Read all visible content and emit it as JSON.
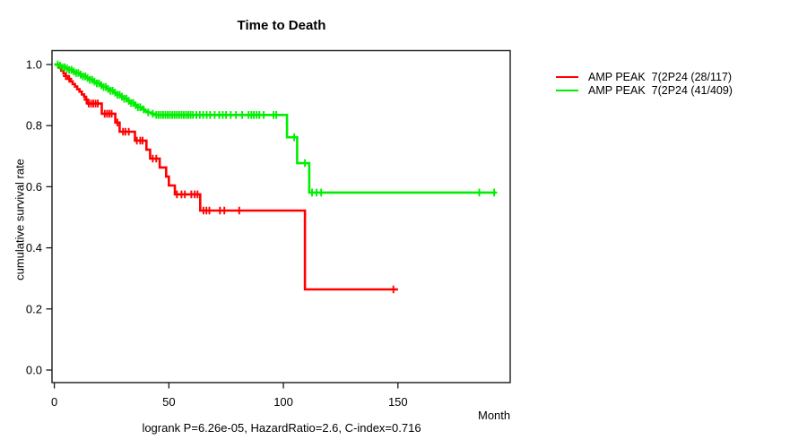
{
  "title": "Time to Death",
  "axes": {
    "ylabel": "cumulative survival rate",
    "xlabel": "Month",
    "xtick_labels": [
      "0",
      "50",
      "100",
      "150"
    ],
    "ytick_labels": [
      "0.0",
      "0.2",
      "0.4",
      "0.6",
      "0.8",
      "1.0"
    ]
  },
  "footnote": "logrank P=6.26e-05, HazardRatio=2.6, C-index=0.716",
  "legend": {
    "items": [
      {
        "label": "AMP PEAK  7(2P24 (28/117)",
        "color": "#ff0000"
      },
      {
        "label": "AMP PEAK  7(2P24 (41/409)",
        "color": "#00ee00"
      }
    ]
  },
  "chart_data": {
    "type": "line",
    "subtype": "kaplan-meier-step",
    "title": "Time to Death",
    "xlabel": "Month",
    "ylabel": "cumulative survival rate",
    "xlim": [
      0,
      199
    ],
    "ylim": [
      0.0,
      1.0
    ],
    "xticks": [
      0,
      50,
      100,
      150
    ],
    "yticks": [
      0.0,
      0.2,
      0.4,
      0.6,
      0.8,
      1.0
    ],
    "grid": false,
    "legend_position": "right-outside",
    "annotation": "logrank P=6.26e-05, HazardRatio=2.6, C-index=0.716",
    "series": [
      {
        "name": "AMP PEAK  7(2P24 (28/117)",
        "events": "28/117",
        "color": "#ff0000",
        "end_time": 150,
        "steps": [
          [
            0,
            1.0
          ],
          [
            2,
            0.99
          ],
          [
            3,
            0.98
          ],
          [
            4,
            0.97
          ],
          [
            5,
            0.962
          ],
          [
            6,
            0.953
          ],
          [
            7,
            0.945
          ],
          [
            8,
            0.936
          ],
          [
            9,
            0.928
          ],
          [
            10,
            0.919
          ],
          [
            11,
            0.911
          ],
          [
            12,
            0.902
          ],
          [
            13,
            0.894
          ],
          [
            13.7,
            0.885
          ],
          [
            14.5,
            0.872
          ],
          [
            20.7,
            0.839
          ],
          [
            26.6,
            0.81
          ],
          [
            28.5,
            0.78
          ],
          [
            35.2,
            0.751
          ],
          [
            40.2,
            0.721
          ],
          [
            41.8,
            0.692
          ],
          [
            46,
            0.663
          ],
          [
            48.8,
            0.633
          ],
          [
            50,
            0.604
          ],
          [
            52.6,
            0.575
          ],
          [
            63.7,
            0.522
          ],
          [
            109.4,
            0.264
          ]
        ],
        "censor_times": [
          5,
          6.5,
          14,
          15,
          16,
          17,
          18,
          19,
          22,
          23,
          24,
          25,
          27.5,
          30,
          31,
          32.5,
          36,
          37.5,
          38.5,
          43,
          44.5,
          53.5,
          55.5,
          57,
          59.8,
          61.3,
          62.5,
          65.1,
          66.4,
          67.7,
          72.3,
          74.2,
          80.7,
          148
        ]
      },
      {
        "name": "AMP PEAK  7(2P24 (41/409)",
        "events": "41/409",
        "color": "#00ee00",
        "end_time": 193,
        "steps": [
          [
            0,
            1.0
          ],
          [
            2,
            0.996
          ],
          [
            3.5,
            0.991
          ],
          [
            5,
            0.987
          ],
          [
            6.5,
            0.982
          ],
          [
            8,
            0.977
          ],
          [
            9.5,
            0.972
          ],
          [
            11,
            0.967
          ],
          [
            12.5,
            0.961
          ],
          [
            14,
            0.956
          ],
          [
            15.5,
            0.95
          ],
          [
            17,
            0.944
          ],
          [
            18.5,
            0.938
          ],
          [
            20,
            0.932
          ],
          [
            21.5,
            0.926
          ],
          [
            23,
            0.92
          ],
          [
            24.5,
            0.914
          ],
          [
            26,
            0.908
          ],
          [
            27.5,
            0.901
          ],
          [
            29,
            0.895
          ],
          [
            30.5,
            0.888
          ],
          [
            32,
            0.881
          ],
          [
            33.5,
            0.874
          ],
          [
            35,
            0.867
          ],
          [
            36.5,
            0.86
          ],
          [
            38,
            0.853
          ],
          [
            39.5,
            0.847
          ],
          [
            41,
            0.843
          ],
          [
            42.5,
            0.839
          ],
          [
            43.8,
            0.835
          ],
          [
            101.6,
            0.762
          ],
          [
            106,
            0.677
          ],
          [
            111.3,
            0.581
          ]
        ],
        "censor_times": [
          1.5,
          2.5,
          3.5,
          4.5,
          5.5,
          6.5,
          7.5,
          8.5,
          9.5,
          10.5,
          11.5,
          12.5,
          13.5,
          14.5,
          15.5,
          16.5,
          17.5,
          18.5,
          19.5,
          20.5,
          21.5,
          22.5,
          23.5,
          24.5,
          25.5,
          26.5,
          27.5,
          28.5,
          29.5,
          30.5,
          31.5,
          32.5,
          33.5,
          34.5,
          35.5,
          36.5,
          37.5,
          39,
          41,
          43,
          44.5,
          45.5,
          46.5,
          47.5,
          48.5,
          49.5,
          50.5,
          51.5,
          52.5,
          53.5,
          54.5,
          55.5,
          56.5,
          57.5,
          58.5,
          59.5,
          60.5,
          62,
          63.5,
          65,
          66.5,
          68,
          70,
          72,
          73.5,
          75,
          77,
          79.3,
          82,
          84.8,
          86,
          87.1,
          88.3,
          89.5,
          91.4,
          95.7,
          96.9,
          104.7,
          109.4,
          112.5,
          114.5,
          116.5,
          185.5,
          192
        ]
      }
    ]
  }
}
